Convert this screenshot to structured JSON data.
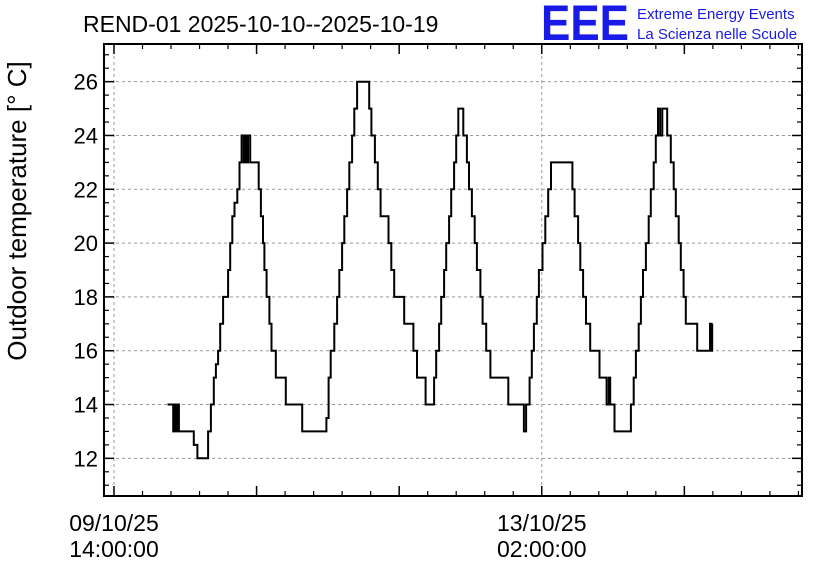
{
  "title": "REND-01 2025-10-10--2025-10-19",
  "brand": {
    "logo": "EEE",
    "line1": "Extreme Energy Events",
    "line2": "La Scienza nelle Scuole",
    "color": "#1a1ae6"
  },
  "chart_data": {
    "type": "line",
    "ylabel": "Outdoor temperature [° C]",
    "xlabel": "",
    "ylim": [
      10.6,
      27.4
    ],
    "yticks": [
      12,
      14,
      16,
      18,
      20,
      22,
      24,
      26
    ],
    "xlim_hours": [
      -1.4,
      96.5
    ],
    "xticks": [
      {
        "hours": 0,
        "line1": "09/10/25",
        "line2": "14:00:00"
      },
      {
        "hours": 60,
        "line1": "13/10/25",
        "line2": "02:00:00"
      }
    ],
    "minor_xticks_hours": [
      20,
      40,
      80
    ],
    "grid": true,
    "line_color": "#000000",
    "series": [
      {
        "name": "REND-01",
        "step": true,
        "points": [
          [
            7.5,
            14
          ],
          [
            8.3,
            13
          ],
          [
            8.5,
            14
          ],
          [
            8.7,
            13
          ],
          [
            8.9,
            14
          ],
          [
            9.1,
            13
          ],
          [
            11.0,
            13
          ],
          [
            11.2,
            12.5
          ],
          [
            11.7,
            12
          ],
          [
            12.9,
            12
          ],
          [
            13.2,
            13
          ],
          [
            13.6,
            14
          ],
          [
            14.0,
            15
          ],
          [
            14.3,
            15.5
          ],
          [
            14.6,
            16
          ],
          [
            14.9,
            17
          ],
          [
            15.3,
            18
          ],
          [
            16.0,
            19
          ],
          [
            16.3,
            20
          ],
          [
            16.6,
            21
          ],
          [
            16.9,
            21.5
          ],
          [
            17.3,
            22
          ],
          [
            17.6,
            23
          ],
          [
            17.9,
            24
          ],
          [
            18.2,
            23
          ],
          [
            18.4,
            24
          ],
          [
            18.6,
            23
          ],
          [
            18.8,
            24
          ],
          [
            19.1,
            23
          ],
          [
            20.3,
            22
          ],
          [
            20.6,
            21
          ],
          [
            20.9,
            20
          ],
          [
            21.1,
            19
          ],
          [
            21.4,
            18
          ],
          [
            21.8,
            17
          ],
          [
            22.1,
            16
          ],
          [
            22.7,
            15
          ],
          [
            24.1,
            14
          ],
          [
            26.4,
            13
          ],
          [
            29.8,
            13.5
          ],
          [
            30.1,
            15
          ],
          [
            30.4,
            16
          ],
          [
            30.9,
            17
          ],
          [
            31.3,
            18
          ],
          [
            31.6,
            19
          ],
          [
            32.0,
            20
          ],
          [
            32.3,
            21
          ],
          [
            32.7,
            22
          ],
          [
            33.0,
            23
          ],
          [
            33.4,
            24
          ],
          [
            33.7,
            25
          ],
          [
            34.1,
            26
          ],
          [
            35.8,
            25
          ],
          [
            36.1,
            24
          ],
          [
            36.6,
            23
          ],
          [
            37.0,
            22
          ],
          [
            37.4,
            21
          ],
          [
            38.5,
            20
          ],
          [
            38.9,
            19
          ],
          [
            39.3,
            18
          ],
          [
            40.7,
            17
          ],
          [
            42.0,
            16
          ],
          [
            42.5,
            15
          ],
          [
            43.7,
            14
          ],
          [
            44.9,
            15
          ],
          [
            45.2,
            16
          ],
          [
            45.6,
            17
          ],
          [
            45.9,
            18
          ],
          [
            46.3,
            19
          ],
          [
            46.6,
            20
          ],
          [
            47.0,
            21
          ],
          [
            47.3,
            22
          ],
          [
            47.7,
            23
          ],
          [
            48.0,
            24
          ],
          [
            48.3,
            25
          ],
          [
            49.0,
            24
          ],
          [
            49.5,
            23
          ],
          [
            49.8,
            22
          ],
          [
            50.2,
            21
          ],
          [
            50.6,
            20
          ],
          [
            50.9,
            19
          ],
          [
            51.4,
            18
          ],
          [
            51.7,
            17
          ],
          [
            52.2,
            16
          ],
          [
            52.8,
            15
          ],
          [
            55.3,
            14
          ],
          [
            57.5,
            13
          ],
          [
            57.8,
            14
          ],
          [
            58.3,
            15
          ],
          [
            58.6,
            16
          ],
          [
            58.9,
            17
          ],
          [
            59.3,
            18
          ],
          [
            59.6,
            19
          ],
          [
            60.1,
            20
          ],
          [
            60.5,
            21
          ],
          [
            60.9,
            22
          ],
          [
            61.3,
            23
          ],
          [
            64.3,
            22
          ],
          [
            64.6,
            21
          ],
          [
            65.1,
            20
          ],
          [
            65.4,
            19
          ],
          [
            65.8,
            18
          ],
          [
            66.2,
            17
          ],
          [
            66.8,
            16
          ],
          [
            68.1,
            15
          ],
          [
            69.1,
            14
          ],
          [
            69.4,
            15
          ],
          [
            69.6,
            14
          ],
          [
            70.2,
            13
          ],
          [
            72.5,
            14
          ],
          [
            72.9,
            15
          ],
          [
            73.2,
            16
          ],
          [
            73.6,
            17
          ],
          [
            73.9,
            18
          ],
          [
            74.2,
            19
          ],
          [
            74.6,
            20
          ],
          [
            75.0,
            21
          ],
          [
            75.3,
            22
          ],
          [
            75.7,
            23
          ],
          [
            76.0,
            24
          ],
          [
            76.3,
            25
          ],
          [
            76.6,
            24
          ],
          [
            76.9,
            25
          ],
          [
            77.6,
            24
          ],
          [
            78.1,
            23
          ],
          [
            78.5,
            22
          ],
          [
            78.8,
            21
          ],
          [
            79.2,
            20
          ],
          [
            79.5,
            19
          ],
          [
            79.9,
            18
          ],
          [
            80.2,
            17
          ],
          [
            81.8,
            16
          ],
          [
            83.6,
            17
          ],
          [
            83.8,
            16
          ],
          [
            83.9,
            17
          ]
        ]
      }
    ]
  }
}
